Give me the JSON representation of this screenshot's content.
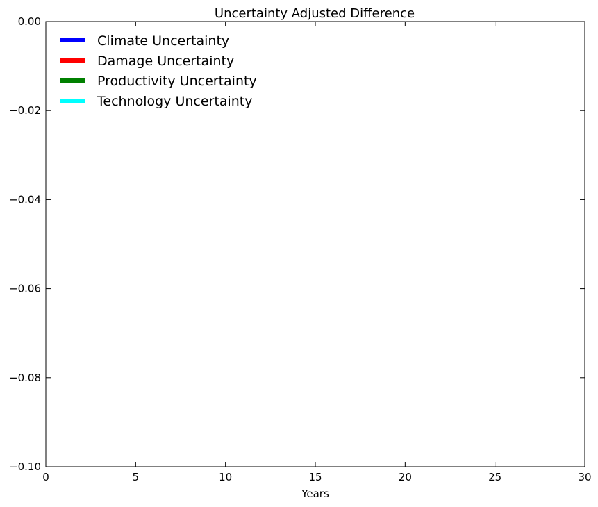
{
  "chart_data": {
    "type": "line",
    "title": "Uncertainty Adjusted Difference",
    "xlabel": "Years",
    "ylabel": "",
    "xlim": [
      0,
      30
    ],
    "ylim": [
      -0.1,
      0.0
    ],
    "x_ticks": [
      0,
      5,
      10,
      15,
      20,
      25,
      30
    ],
    "x_tick_labels": [
      "0",
      "5",
      "10",
      "15",
      "20",
      "25",
      "30"
    ],
    "y_ticks": [
      0.0,
      -0.02,
      -0.04,
      -0.06,
      -0.08,
      -0.1
    ],
    "y_tick_labels": [
      "0.00",
      "−0.02",
      "−0.04",
      "−0.06",
      "−0.08",
      "−0.10"
    ],
    "grid": false,
    "legend_position": "top-left",
    "series": [
      {
        "name": "Climate Uncertainty",
        "color": "#0000ff",
        "x": [],
        "y": []
      },
      {
        "name": "Damage Uncertainty",
        "color": "#ff0000",
        "x": [],
        "y": []
      },
      {
        "name": "Productivity Uncertainty",
        "color": "#008000",
        "x": [],
        "y": []
      },
      {
        "name": "Technology Uncertainty",
        "color": "#00ffff",
        "x": [],
        "y": []
      }
    ]
  }
}
